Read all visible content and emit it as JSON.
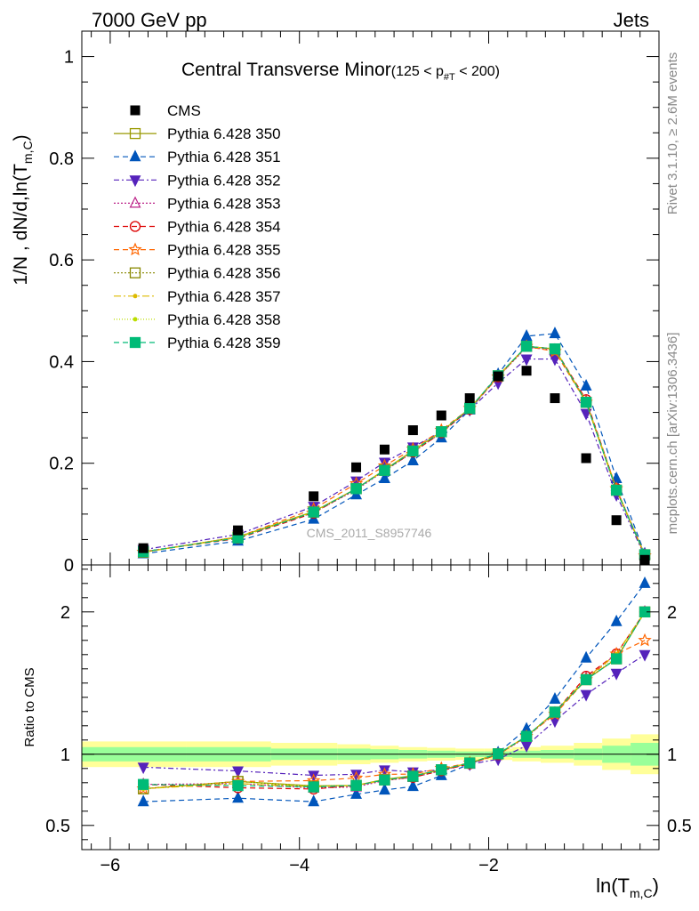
{
  "header": {
    "left": "7000 GeV pp",
    "right": "Jets"
  },
  "side_labels": {
    "rivet": "Rivet 3.1.10, ≥ 2.6M events",
    "mcplots": "mcplots.cern.ch [arXiv:1306.3436]"
  },
  "watermark": "CMS_2011_S8957746",
  "colors": {
    "data": "#000000",
    "band_inner": "#99ff99",
    "band_outer": "#ffff99"
  },
  "chart_data": {
    "type": "scatter",
    "title": {
      "main": "Central Transverse Minor",
      "detail": "(125 < p",
      "sub": "#T",
      "tail": " < 200)"
    },
    "xlabel": {
      "base": "ln(T",
      "sub": "m,C",
      "tail": ")"
    },
    "ylabel": {
      "base": "1/N , dN/d,ln(T",
      "sub": "m,C",
      "tail": ")"
    },
    "ratio_ylabel": "Ratio to CMS",
    "xlim": [
      -6.3,
      -0.2
    ],
    "ylim": [
      0,
      1.05
    ],
    "ratio_ylim": [
      0.33,
      2.33
    ],
    "xticks": [
      {
        "v": -6,
        "label": "−6"
      },
      {
        "v": -4,
        "label": "−4"
      },
      {
        "v": -2,
        "label": "−2"
      }
    ],
    "yticks": [
      {
        "v": 0,
        "label": "0"
      },
      {
        "v": 0.2,
        "label": "0.2"
      },
      {
        "v": 0.4,
        "label": "0.4"
      },
      {
        "v": 0.6,
        "label": "0.6"
      },
      {
        "v": 0.8,
        "label": "0.8"
      },
      {
        "v": 1,
        "label": "1"
      }
    ],
    "ratio_yticks": [
      {
        "v": 0.5,
        "label": "0.5"
      },
      {
        "v": 1,
        "label": "1"
      },
      {
        "v": 2,
        "label": "2"
      }
    ],
    "x": [
      -5.65,
      -4.65,
      -3.85,
      -3.4,
      -3.1,
      -2.8,
      -2.5,
      -2.2,
      -1.9,
      -1.6,
      -1.3,
      -0.97,
      -0.65,
      -0.35
    ],
    "cms": [
      0.033,
      0.068,
      0.135,
      0.192,
      0.227,
      0.265,
      0.294,
      0.328,
      0.371,
      0.382,
      0.328,
      0.21,
      0.088,
      0.01
    ],
    "band": {
      "edges": [
        -6.3,
        -5.2,
        -4.3,
        -3.6,
        -3.25,
        -2.95,
        -2.65,
        -2.35,
        -2.05,
        -1.75,
        -1.45,
        -1.1,
        -0.8,
        -0.5,
        -0.2
      ],
      "inner": [
        0.05,
        0.05,
        0.04,
        0.04,
        0.035,
        0.03,
        0.025,
        0.02,
        0.02,
        0.025,
        0.03,
        0.04,
        0.06,
        0.08
      ],
      "outer": [
        0.09,
        0.09,
        0.08,
        0.07,
        0.06,
        0.05,
        0.045,
        0.04,
        0.04,
        0.05,
        0.06,
        0.08,
        0.11,
        0.14
      ]
    },
    "series": [
      {
        "name": "Pythia 6.428 350",
        "color": "#999900",
        "marker": "square-open",
        "dash": "",
        "values": [
          0.025,
          0.055,
          0.105,
          0.15,
          0.187,
          0.225,
          0.262,
          0.308,
          0.372,
          0.43,
          0.425,
          0.32,
          0.147,
          0.02
        ]
      },
      {
        "name": "Pythia 6.428 351",
        "color": "#0055bb",
        "marker": "triangle-up",
        "dash": "6,4",
        "values": [
          0.022,
          0.047,
          0.09,
          0.138,
          0.17,
          0.205,
          0.25,
          0.305,
          0.375,
          0.45,
          0.455,
          0.352,
          0.17,
          0.022
        ]
      },
      {
        "name": "Pythia 6.428 352",
        "color": "#5522bb",
        "marker": "triangle-down",
        "dash": "6,3,2,3",
        "values": [
          0.03,
          0.06,
          0.115,
          0.165,
          0.202,
          0.232,
          0.262,
          0.305,
          0.358,
          0.405,
          0.405,
          0.298,
          0.138,
          0.017
        ]
      },
      {
        "name": "Pythia 6.428 353",
        "color": "#bb2288",
        "marker": "triangle-open",
        "dash": "2,2",
        "values": [
          0.026,
          0.054,
          0.103,
          0.148,
          0.185,
          0.222,
          0.26,
          0.307,
          0.37,
          0.428,
          0.423,
          0.322,
          0.15,
          0.02
        ]
      },
      {
        "name": "Pythia 6.428 354",
        "color": "#dd0000",
        "marker": "circle-open",
        "dash": "6,4",
        "values": [
          0.026,
          0.052,
          0.102,
          0.15,
          0.186,
          0.222,
          0.26,
          0.306,
          0.37,
          0.43,
          0.425,
          0.325,
          0.15,
          0.02
        ]
      },
      {
        "name": "Pythia 6.428 355",
        "color": "#ff6600",
        "marker": "star-open",
        "dash": "6,4",
        "values": [
          0.025,
          0.055,
          0.11,
          0.16,
          0.195,
          0.228,
          0.265,
          0.308,
          0.37,
          0.43,
          0.42,
          0.32,
          0.15,
          0.018
        ]
      },
      {
        "name": "Pythia 6.428 356",
        "color": "#888800",
        "marker": "square-open",
        "dash": "2,2",
        "values": [
          0.025,
          0.055,
          0.104,
          0.15,
          0.186,
          0.224,
          0.262,
          0.308,
          0.372,
          0.43,
          0.425,
          0.32,
          0.147,
          0.02
        ]
      },
      {
        "name": "Pythia 6.428 357",
        "color": "#ddbb00",
        "marker": "dot",
        "dash": "8,3,2,3",
        "values": [
          0.025,
          0.054,
          0.104,
          0.15,
          0.186,
          0.224,
          0.262,
          0.308,
          0.372,
          0.43,
          0.425,
          0.322,
          0.15,
          0.02
        ]
      },
      {
        "name": "Pythia 6.428 358",
        "color": "#bbdd00",
        "marker": "dot",
        "dash": "1,2",
        "values": [
          0.025,
          0.055,
          0.105,
          0.15,
          0.187,
          0.224,
          0.262,
          0.308,
          0.372,
          0.43,
          0.425,
          0.32,
          0.148,
          0.02
        ]
      },
      {
        "name": "Pythia 6.428 359",
        "color": "#00bb77",
        "marker": "square",
        "dash": "6,4",
        "values": [
          0.026,
          0.053,
          0.104,
          0.15,
          0.186,
          0.224,
          0.262,
          0.308,
          0.372,
          0.43,
          0.425,
          0.32,
          0.147,
          0.02
        ]
      }
    ]
  }
}
